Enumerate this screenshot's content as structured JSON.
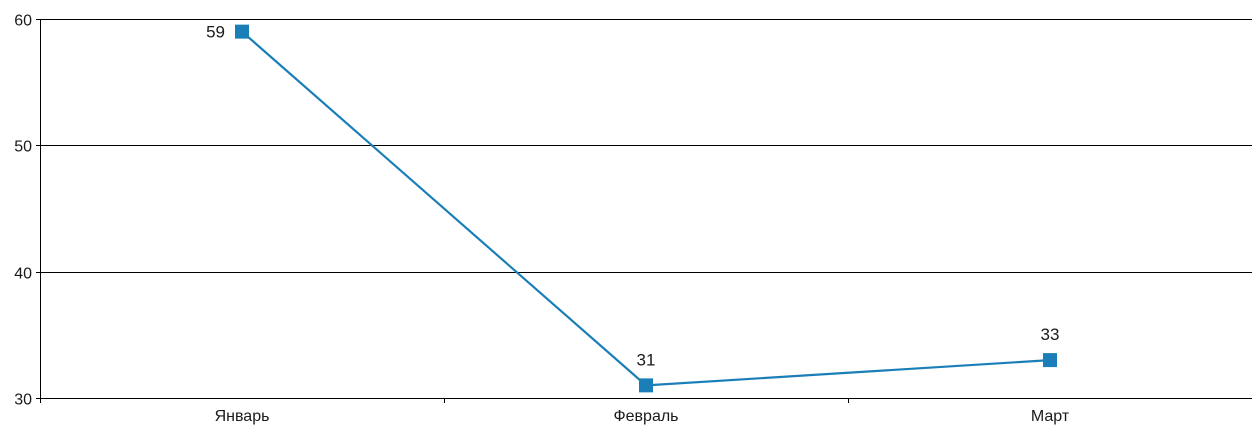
{
  "chart_data": {
    "type": "line",
    "title": "",
    "xlabel": "",
    "ylabel": "",
    "categories": [
      "Январь",
      "Февраль",
      "Март"
    ],
    "series": [
      {
        "values": [
          59,
          31,
          33
        ],
        "color": "#1a7fb8",
        "marker": "square"
      }
    ],
    "ylim": [
      30,
      60
    ],
    "yticks": [
      30,
      40,
      50,
      60
    ],
    "grid": "horizontal",
    "legend": "none",
    "data_labels": true
  },
  "colors": {
    "series": "#1a7fb8",
    "gridline": "#000000",
    "text": "#1a1a1a"
  }
}
